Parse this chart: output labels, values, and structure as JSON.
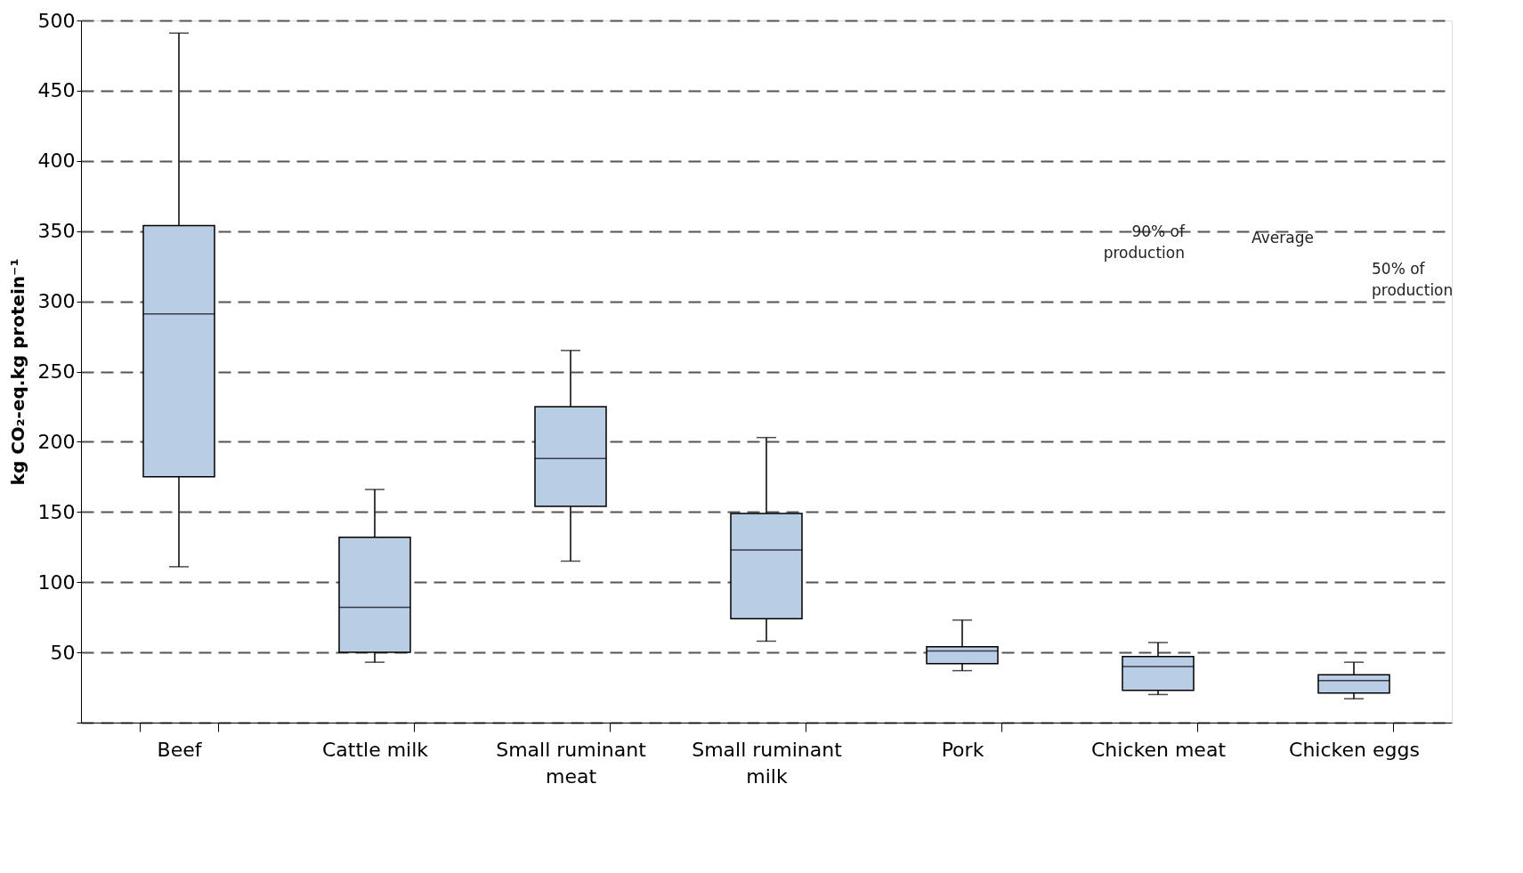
{
  "chart_data": {
    "type": "box",
    "ylabel": "kg CO₂-eq.kg protein⁻¹",
    "categories": [
      "Beef",
      "Cattle milk",
      "Small ruminant meat",
      "Small ruminant milk",
      "Pork",
      "Chicken meat",
      "Chicken eggs"
    ],
    "boxes": [
      {
        "low": 111,
        "q1": 175,
        "median": 291,
        "q3": 354,
        "high": 491
      },
      {
        "low": 43,
        "q1": 50,
        "median": 82,
        "q3": 132,
        "high": 166
      },
      {
        "low": 115,
        "q1": 154,
        "median": 188,
        "q3": 225,
        "high": 265
      },
      {
        "low": 58,
        "q1": 74,
        "median": 123,
        "q3": 149,
        "high": 203
      },
      {
        "low": 37,
        "q1": 42,
        "median": 51,
        "q3": 54,
        "high": 73
      },
      {
        "low": 20,
        "q1": 23,
        "median": 40,
        "q3": 47,
        "high": 57
      },
      {
        "low": 17,
        "q1": 21,
        "median": 30,
        "q3": 34,
        "high": 43
      }
    ],
    "color": "#b9cde5",
    "ylim": [
      0,
      500
    ],
    "yticks": [
      {
        "value": 0,
        "label": null
      },
      50,
      100,
      150,
      200,
      250,
      300,
      350,
      400,
      450,
      500
    ],
    "grid": "y",
    "line_style": "dashed",
    "annotations": [
      "Average",
      "90% of\nproduction",
      "50% of\nproduction"
    ]
  }
}
